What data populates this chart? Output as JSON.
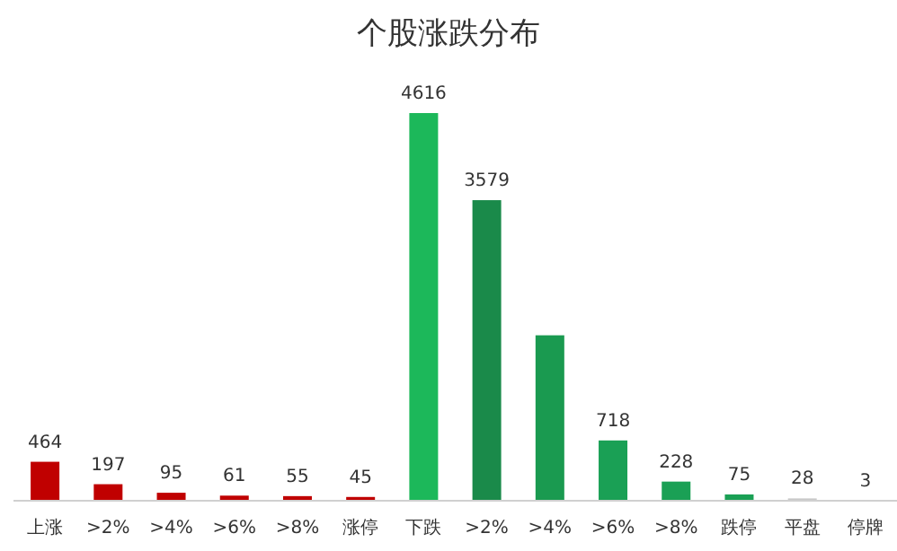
{
  "chart_data": {
    "type": "bar",
    "title": "个股涨跌分布",
    "categories": [
      "上涨",
      ">2%",
      ">4%",
      ">6%",
      ">8%",
      "涨停",
      "下跌",
      ">2%",
      ">4%",
      ">6%",
      ">8%",
      "跌停",
      "平盘",
      "停牌"
    ],
    "values": [
      464,
      197,
      95,
      61,
      55,
      45,
      4616,
      3579,
      1970,
      718,
      228,
      75,
      28,
      3
    ],
    "colors": [
      "#c00000",
      "#c00000",
      "#c00000",
      "#c00000",
      "#c00000",
      "#c00000",
      "#1cb85a",
      "#1a8a4a",
      "#1a9a50",
      "#1aa055",
      "#1aa055",
      "#1aa055",
      "#c8c8c8",
      "#c8c8c8"
    ],
    "value_labels": [
      "464",
      "197",
      "95",
      "61",
      "55",
      "45",
      "4616",
      "3579",
      null,
      "718",
      "228",
      "75",
      "28",
      "3"
    ]
  }
}
